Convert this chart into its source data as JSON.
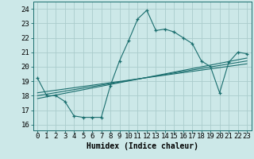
{
  "xlabel": "Humidex (Indice chaleur)",
  "background_color": "#cce8e8",
  "grid_color": "#aacccc",
  "line_color": "#1a6e6e",
  "xlim": [
    -0.5,
    23.5
  ],
  "ylim": [
    15.6,
    24.5
  ],
  "yticks": [
    16,
    17,
    18,
    19,
    20,
    21,
    22,
    23,
    24
  ],
  "xticks": [
    0,
    1,
    2,
    3,
    4,
    5,
    6,
    7,
    8,
    9,
    10,
    11,
    12,
    13,
    14,
    15,
    16,
    17,
    18,
    19,
    20,
    21,
    22,
    23
  ],
  "main_line_x": [
    0,
    1,
    2,
    3,
    4,
    5,
    6,
    7,
    8,
    9,
    10,
    11,
    12,
    13,
    14,
    15,
    16,
    17,
    18,
    19,
    20,
    21,
    22,
    23
  ],
  "main_line_y": [
    19.2,
    18.0,
    18.0,
    17.6,
    16.6,
    16.5,
    16.5,
    16.5,
    18.7,
    20.4,
    21.8,
    23.3,
    23.9,
    22.5,
    22.6,
    22.4,
    22.0,
    21.6,
    20.4,
    20.0,
    18.2,
    20.3,
    21.0,
    20.9
  ],
  "reg_lines": [
    [
      [
        0,
        23
      ],
      [
        18.0,
        20.4
      ]
    ],
    [
      [
        0,
        23
      ],
      [
        18.2,
        20.2
      ]
    ],
    [
      [
        0,
        23
      ],
      [
        17.8,
        20.6
      ]
    ]
  ],
  "label_fontsize": 7,
  "tick_fontsize": 6.5
}
